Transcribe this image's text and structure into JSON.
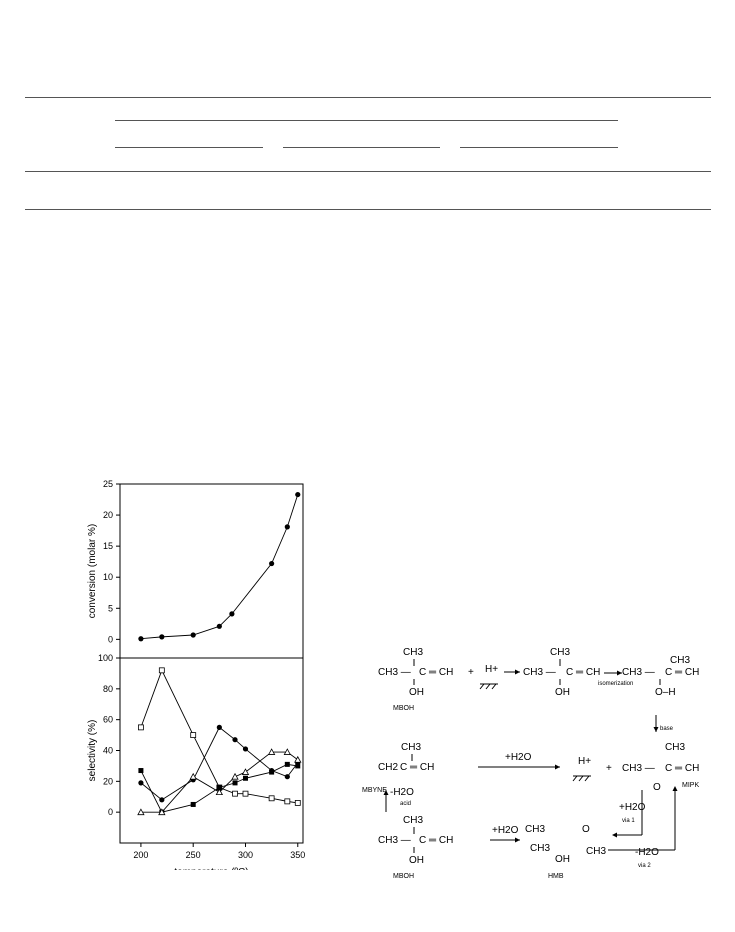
{
  "chart_data": [
    {
      "type": "line",
      "ylabel": "conversion (molar %)",
      "xlabel": "",
      "xlim": [
        180,
        355
      ],
      "ylim": [
        -3,
        25
      ],
      "yticks": [
        0,
        5,
        10,
        15,
        20,
        25
      ],
      "series": [
        {
          "marker": "filled-circle",
          "x": [
            200,
            220,
            250,
            275,
            287,
            325,
            340,
            350
          ],
          "values": [
            0.1,
            0.4,
            0.7,
            2.1,
            4.1,
            12.2,
            18.1,
            23.3
          ]
        }
      ]
    },
    {
      "type": "line",
      "ylabel": "selectivity (%)",
      "xlabel": "temperature (ºC)",
      "xlim": [
        180,
        355
      ],
      "ylim": [
        -20,
        100
      ],
      "yticks": [
        0,
        20,
        40,
        60,
        80,
        100
      ],
      "xticks": [
        200,
        250,
        300,
        350
      ],
      "series": [
        {
          "marker": "open-square",
          "x": [
            200,
            220,
            250,
            275,
            290,
            300,
            325,
            340,
            350
          ],
          "values": [
            55,
            92,
            50,
            16,
            12,
            12,
            9,
            7,
            6
          ]
        },
        {
          "marker": "filled-circle",
          "x": [
            200,
            220,
            250,
            275,
            290,
            300,
            325,
            340,
            350
          ],
          "values": [
            19,
            8,
            21,
            55,
            47,
            41,
            27,
            23,
            32
          ]
        },
        {
          "marker": "filled-square",
          "x": [
            200,
            220,
            250,
            275,
            290,
            300,
            325,
            340,
            350
          ],
          "values": [
            27,
            0,
            5,
            16,
            19,
            22,
            26,
            31,
            30
          ]
        },
        {
          "marker": "open-triangle",
          "x": [
            200,
            220,
            250,
            275,
            290,
            300,
            325,
            340,
            350
          ],
          "values": [
            0,
            0,
            23,
            13,
            23,
            26,
            39,
            39,
            34
          ]
        }
      ]
    }
  ],
  "scheme": {
    "ch3": "CH3",
    "ch3_dash": "CH3 —",
    "oh": "OH",
    "ch_alkyne": "C ═ CH",
    "ch2_vinyl": "CH2",
    "mboh": "MBOH",
    "mbyne": "MBYNE",
    "mipk": "MIPK",
    "hmb": "HMB",
    "h_plus": "H+",
    "plus": "+",
    "isomerization": "isomerization",
    "base": "base",
    "acid": "acid",
    "plus_h2o": "+H2O",
    "minus_h2o": "-H2O",
    "via1": "via 1",
    "via2": "via 2",
    "o_h": "O–H",
    "o": "O"
  }
}
